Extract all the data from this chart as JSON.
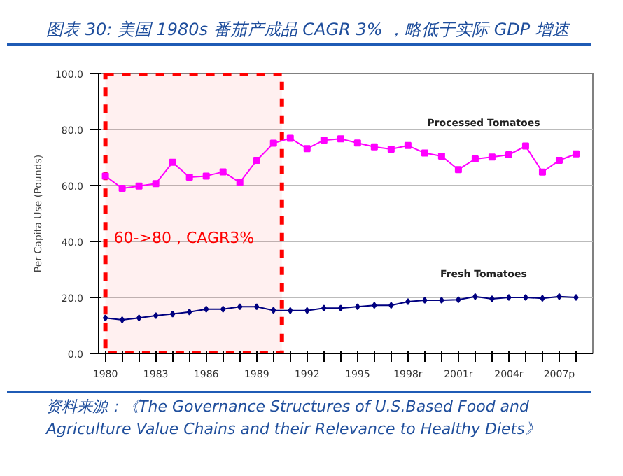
{
  "chart_data": {
    "type": "line",
    "title": "图表 30:  美国 1980s 番茄产成品 CAGR 3% ，略低于实际 GDP 增速",
    "ylabel": "Per Capita Use (Pounds)",
    "x": [
      1980,
      1981,
      1982,
      1983,
      1984,
      1985,
      1986,
      1987,
      1988,
      1989,
      1990,
      1991,
      1992,
      1993,
      1994,
      1995,
      1996,
      1997,
      1998,
      1999,
      2000,
      2001,
      2002,
      2003,
      2004,
      2005,
      2006,
      2007,
      2008
    ],
    "series": [
      {
        "name": "Processed Tomatoes",
        "color": "#ff00ff",
        "values": [
          63.4,
          59.0,
          59.8,
          60.7,
          68.3,
          63.0,
          63.4,
          64.9,
          61.1,
          69.0,
          75.1,
          76.9,
          73.2,
          76.2,
          76.7,
          75.2,
          73.8,
          73.0,
          74.3,
          71.6,
          70.5,
          65.7,
          69.5,
          70.2,
          71.0,
          74.1,
          64.8,
          69.0,
          71.3
        ]
      },
      {
        "name": "Fresh Tomatoes",
        "color": "#000080",
        "marker": "diamond",
        "values": [
          12.7,
          12.0,
          12.7,
          13.5,
          14.1,
          14.8,
          15.8,
          15.8,
          16.7,
          16.7,
          15.4,
          15.3,
          15.3,
          16.2,
          16.2,
          16.7,
          17.2,
          17.2,
          18.5,
          19.0,
          19.0,
          19.2,
          20.3,
          19.5,
          20.0,
          20.0,
          19.7,
          20.3,
          20.0
        ]
      }
    ],
    "xlim": [
      1979.6,
      2009
    ],
    "xticks": [
      {
        "value": 1980,
        "label": "1980"
      },
      {
        "value": 1981,
        "label": null
      },
      {
        "value": 1982,
        "label": null
      },
      {
        "value": 1983,
        "label": "1983"
      },
      {
        "value": 1984,
        "label": null
      },
      {
        "value": 1985,
        "label": null
      },
      {
        "value": 1986,
        "label": "1986"
      },
      {
        "value": 1987,
        "label": null
      },
      {
        "value": 1988,
        "label": null
      },
      {
        "value": 1989,
        "label": "1989"
      },
      {
        "value": 1990,
        "label": null
      },
      {
        "value": 1991,
        "label": null
      },
      {
        "value": 1992,
        "label": "1992"
      },
      {
        "value": 1993,
        "label": null
      },
      {
        "value": 1994,
        "label": null
      },
      {
        "value": 1995,
        "label": "1995"
      },
      {
        "value": 1996,
        "label": null
      },
      {
        "value": 1997,
        "label": null
      },
      {
        "value": 1998,
        "label": "1998r"
      },
      {
        "value": 1999,
        "label": null
      },
      {
        "value": 2000,
        "label": null
      },
      {
        "value": 2001,
        "label": "2001r"
      },
      {
        "value": 2002,
        "label": null
      },
      {
        "value": 2003,
        "label": null
      },
      {
        "value": 2004,
        "label": "2004r"
      },
      {
        "value": 2005,
        "label": null
      },
      {
        "value": 2006,
        "label": null
      },
      {
        "value": 2007,
        "label": "2007p"
      },
      {
        "value": 2008,
        "label": null
      }
    ],
    "ylim": [
      0,
      100
    ],
    "yticks": [
      {
        "value": 0,
        "label": "0.0"
      },
      {
        "value": 20,
        "label": "20.0"
      },
      {
        "value": 40,
        "label": "40.0"
      },
      {
        "value": 60,
        "label": "60.0"
      },
      {
        "value": 80,
        "label": "80.0"
      },
      {
        "value": 100,
        "label": "100.0"
      }
    ],
    "grid": "y",
    "marker": "square",
    "line_style": "solid",
    "bands": [
      {
        "axis": "x",
        "from": 1980,
        "to": 1990.5,
        "label": "60->80 , CAGR3%",
        "color": "#ff0000"
      }
    ],
    "annotations": [
      "资料来源：《The Governance Structures of U.S.Based Food and Agriculture Value Chains and their Relevance to Healthy Diets》"
    ]
  }
}
